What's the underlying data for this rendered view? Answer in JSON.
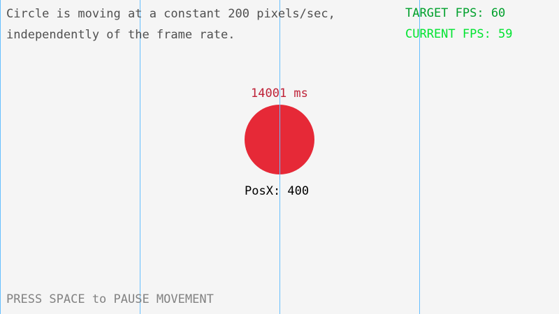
{
  "info": {
    "line1": "Circle is moving at a constant 200 pixels/sec,",
    "line2": "independently of the frame rate."
  },
  "fps": {
    "target": "TARGET FPS: 60",
    "current": "CURRENT FPS: 59"
  },
  "elapsed": "14001 ms",
  "position": "PosX: 400",
  "hint": "PRESS SPACE to PAUSE MOVEMENT",
  "colors": {
    "background": "#f5f5f5",
    "grid_line": "#66bfff",
    "circle": "#e62937",
    "elapsed_text": "#be2137",
    "target_fps": "#00a02c",
    "current_fps": "#00e430",
    "info_text": "#505050",
    "hint_text": "#828282"
  }
}
